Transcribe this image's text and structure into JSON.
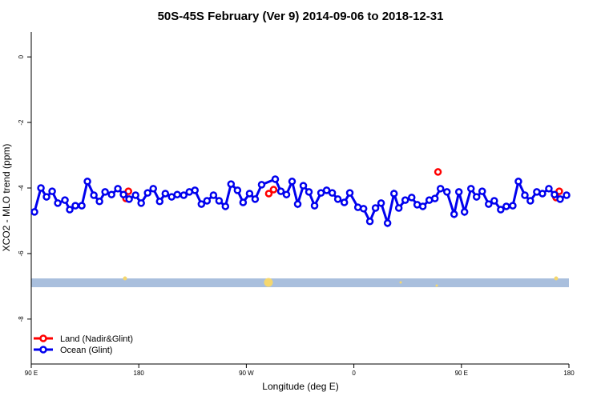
{
  "chart_data": {
    "type": "line",
    "title": "50S-45S February (Ver 9)   2014-09-06 to 2018-12-31",
    "x_label": "Longitude (deg E)",
    "y_label": "XCO2 - MLO trend (ppm)",
    "xlim": [
      90,
      540
    ],
    "xticks": [
      {
        "value": 90,
        "label": "90 E"
      },
      {
        "value": 180,
        "label": "180"
      },
      {
        "value": 270,
        "label": "90 W"
      },
      {
        "value": 360,
        "label": "0"
      },
      {
        "value": 450,
        "label": "90 E"
      },
      {
        "value": 540,
        "label": "180"
      }
    ],
    "ylim": [
      -9.37,
      0.76
    ],
    "yticks": [
      0,
      -2,
      -4,
      -6,
      -8
    ],
    "legend": "bottom-left",
    "series": [
      {
        "name": "Land (Nadir&Glint)",
        "color": "#ff0000",
        "connect": false,
        "x": [
          169.3,
          171.3,
          288.8,
          292.8,
          430.4,
          529.2,
          531.9
        ],
        "values": [
          -4.32,
          -4.1,
          -4.17,
          -4.05,
          -3.51,
          -4.29,
          -4.1
        ]
      },
      {
        "name": "Ocean (Glint)",
        "color": "#0000ee",
        "connect": true,
        "x": [
          92.7,
          98.1,
          102.8,
          107.5,
          112.2,
          118.2,
          122.2,
          126.9,
          132.3,
          137.0,
          142.4,
          147.1,
          151.8,
          157.2,
          162.5,
          167.2,
          171.9,
          177.3,
          182.0,
          187.4,
          192.1,
          197.5,
          202.2,
          207.5,
          212.2,
          217.6,
          222.3,
          227.0,
          232.4,
          237.1,
          242.5,
          247.2,
          252.5,
          257.2,
          262.6,
          267.3,
          272.7,
          277.4,
          282.8,
          294.2,
          298.9,
          303.6,
          308.3,
          313.0,
          317.7,
          322.4,
          327.1,
          332.5,
          337.2,
          341.9,
          346.6,
          352.0,
          356.6,
          363.4,
          368.1,
          373.4,
          378.1,
          382.8,
          388.2,
          393.6,
          397.6,
          403.0,
          408.4,
          413.0,
          417.7,
          423.1,
          427.8,
          432.5,
          437.9,
          443.9,
          447.9,
          452.6,
          458.0,
          462.7,
          467.4,
          472.8,
          477.5,
          482.9,
          487.6,
          493.0,
          497.7,
          503.1,
          507.7,
          513.1,
          517.8,
          523.2,
          527.9,
          532.6,
          538.0
        ],
        "values": [
          -4.73,
          -4.0,
          -4.27,
          -4.1,
          -4.46,
          -4.37,
          -4.66,
          -4.54,
          -4.54,
          -3.8,
          -4.22,
          -4.41,
          -4.12,
          -4.2,
          -4.02,
          -4.2,
          -4.34,
          -4.22,
          -4.46,
          -4.15,
          -4.02,
          -4.41,
          -4.17,
          -4.27,
          -4.2,
          -4.22,
          -4.12,
          -4.07,
          -4.49,
          -4.39,
          -4.22,
          -4.39,
          -4.56,
          -3.88,
          -4.07,
          -4.44,
          -4.17,
          -4.34,
          -3.9,
          -3.73,
          -4.1,
          -4.2,
          -3.8,
          -4.49,
          -3.93,
          -4.12,
          -4.54,
          -4.15,
          -4.07,
          -4.15,
          -4.34,
          -4.44,
          -4.15,
          -4.59,
          -4.63,
          -5.02,
          -4.61,
          -4.46,
          -5.07,
          -4.17,
          -4.61,
          -4.37,
          -4.29,
          -4.51,
          -4.56,
          -4.37,
          -4.32,
          -4.02,
          -4.12,
          -4.8,
          -4.12,
          -4.73,
          -4.02,
          -4.27,
          -4.1,
          -4.49,
          -4.39,
          -4.66,
          -4.56,
          -4.54,
          -3.8,
          -4.22,
          -4.39,
          -4.12,
          -4.17,
          -4.02,
          -4.2,
          -4.34,
          -4.22
        ]
      }
    ]
  }
}
